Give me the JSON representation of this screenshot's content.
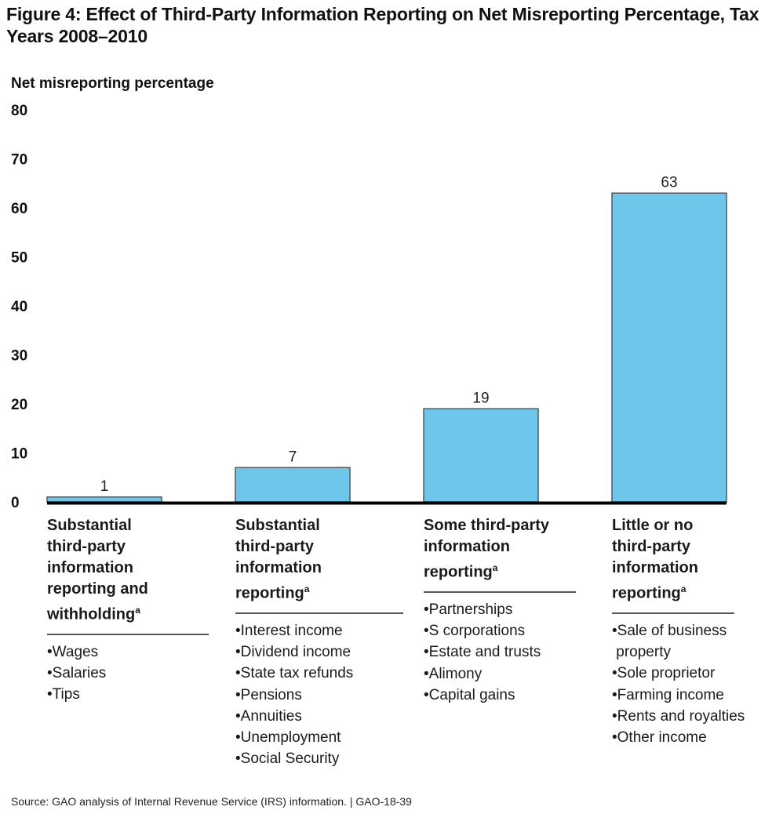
{
  "title": "Figure 4: Effect of Third-Party Information Reporting on Net Misreporting Percentage, Tax Years 2008–2010",
  "source": "Source: GAO analysis of Internal Revenue Service (IRS) information.  |  GAO-18-39",
  "colors": {
    "bar_fill": "#6ec6ea",
    "bar_stroke": "#4a5a63",
    "axis": "#000000"
  },
  "chart_data": {
    "type": "bar",
    "title": "Figure 4: Effect of Third-Party Information Reporting on Net Misreporting Percentage, Tax Years 2008–2010",
    "xlabel": "",
    "ylabel": "Net misreporting percentage",
    "ylim": [
      0,
      80
    ],
    "yticks": [
      0,
      10,
      20,
      30,
      40,
      50,
      60,
      70,
      80
    ],
    "grid": false,
    "legend": "none",
    "categories": [
      "Substantial third-party information reporting and withholding",
      "Substantial third-party information reporting",
      "Some third-party information reporting",
      "Little or no third-party information reporting"
    ],
    "values": [
      1,
      7,
      19,
      63
    ],
    "data_labels": [
      "1",
      "7",
      "19",
      "63"
    ],
    "footnote_marker": "a"
  },
  "categories": [
    {
      "title_lines": [
        "Substantial",
        "third-party",
        "information",
        "reporting and",
        "withholding"
      ],
      "marker": "a",
      "items": [
        "•Wages",
        "•Salaries",
        "•Tips"
      ]
    },
    {
      "title_lines": [
        "Substantial",
        "third-party",
        "information",
        "reporting"
      ],
      "marker": "a",
      "items": [
        "•Interest income",
        "•Dividend income",
        "•State tax refunds",
        "•Pensions",
        "•Annuities",
        "•Unemployment",
        "•Social Security"
      ]
    },
    {
      "title_lines": [
        "Some third-party",
        "information",
        "reporting"
      ],
      "marker": "a",
      "items": [
        "•Partnerships",
        "•S corporations",
        "•Estate and trusts",
        "•Alimony",
        "•Capital gains"
      ]
    },
    {
      "title_lines": [
        "Little or no",
        "third-party",
        "information",
        "reporting"
      ],
      "marker": "a",
      "items": [
        "•Sale of business",
        " property",
        "•Sole proprietor",
        "•Farming income",
        "•Rents and royalties",
        "•Other income"
      ]
    }
  ]
}
